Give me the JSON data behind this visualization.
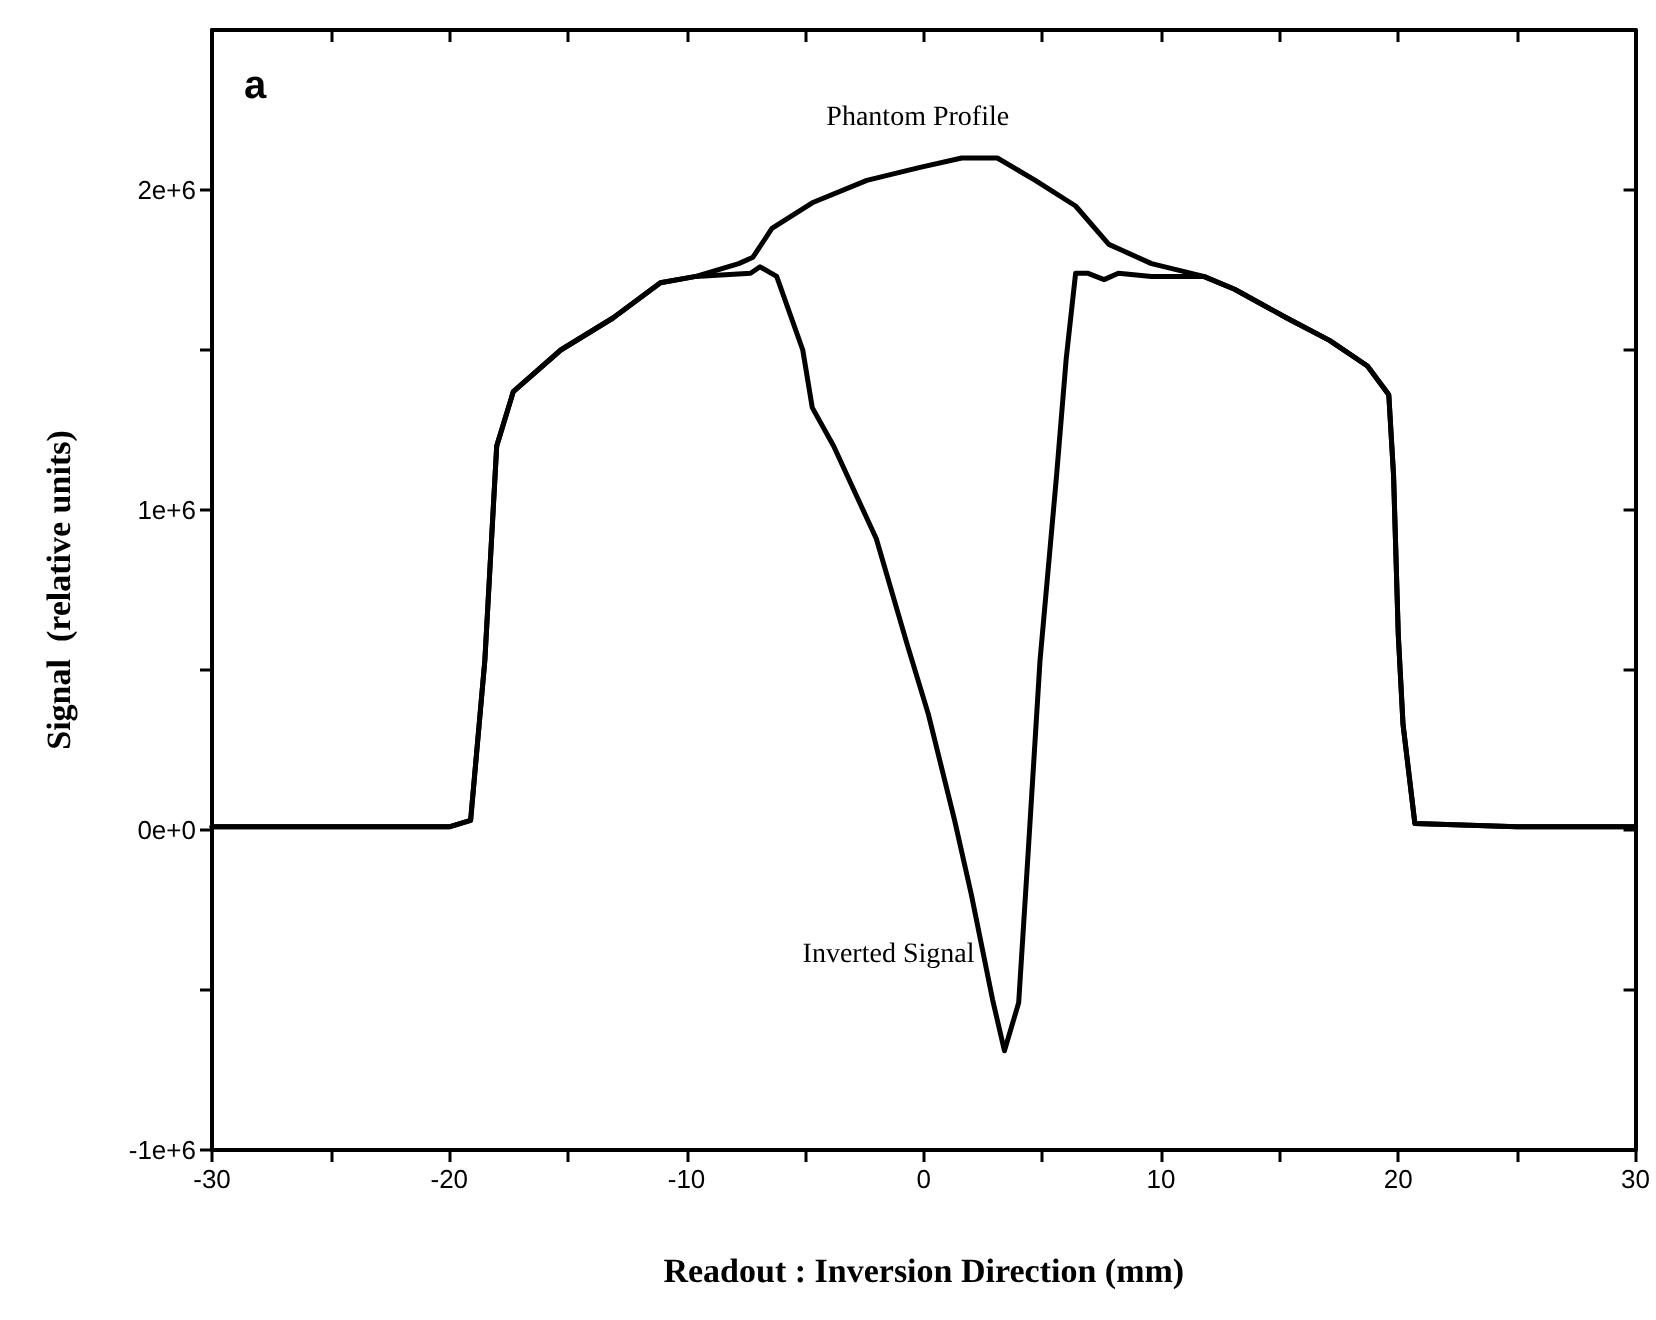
{
  "chart_data": {
    "type": "line",
    "xlabel": "Readout : Inversion Direction (mm)",
    "ylabel": "Signal  (relative units)",
    "annotations": [
      "a"
    ],
    "xlim": [
      -30,
      30
    ],
    "xticks": [
      -30,
      {
        "value": -25,
        "label": null
      },
      -20,
      {
        "value": -15,
        "label": null
      },
      -10,
      {
        "value": -5,
        "label": null
      },
      0,
      {
        "value": 5,
        "label": null
      },
      10,
      {
        "value": 15,
        "label": null
      },
      20,
      {
        "value": 25,
        "label": null
      },
      30
    ],
    "ylim": [
      -1000000,
      2500000
    ],
    "yticks": [
      {
        "value": -1000000,
        "label": "-1e+6"
      },
      {
        "value": -500000,
        "label": null
      },
      {
        "value": 0,
        "label": "0e+0"
      },
      {
        "value": 500000,
        "label": null
      },
      {
        "value": 1000000,
        "label": "1e+6"
      },
      {
        "value": 1500000,
        "label": null
      },
      {
        "value": 2000000,
        "label": "2e+6"
      }
    ],
    "grid": false,
    "marker": "none",
    "line_style": "solid",
    "series": [
      {
        "name": "Phantom Profile",
        "color": "#000000",
        "x": [
          -30,
          -25,
          -20,
          -19.1,
          -18.5,
          -18.0,
          -17.3,
          -15.3,
          -13.1,
          -11.1,
          -9.6,
          -7.8,
          -7.2,
          -6.4,
          -4.7,
          -2.4,
          -0.2,
          1.6,
          3.1,
          4.7,
          6.4,
          7.8,
          8.4,
          9.6,
          11.8,
          13.1,
          15.3,
          17.1,
          18.7,
          19.6,
          19.8,
          20.0,
          20.2,
          20.7,
          25,
          30
        ],
        "values": [
          10000,
          10000,
          10000,
          30000,
          530000,
          1200000,
          1370000,
          1500000,
          1600000,
          1710000,
          1730000,
          1770000,
          1790000,
          1880000,
          1960000,
          2030000,
          2070000,
          2100000,
          2100000,
          2030000,
          1950000,
          1830000,
          1810000,
          1770000,
          1730000,
          1690000,
          1600000,
          1530000,
          1450000,
          1360000,
          1110000,
          610000,
          330000,
          20000,
          10000,
          10000
        ]
      },
      {
        "name": "Inverted Signal",
        "color": "#000000",
        "x": [
          -30,
          -25,
          -20,
          -19.1,
          -18.5,
          -18.0,
          -17.3,
          -15.3,
          -13.1,
          -11.1,
          -9.6,
          -7.3,
          -6.9,
          -6.2,
          -5.1,
          -4.7,
          -3.8,
          -2.0,
          -0.7,
          0.2,
          1.3,
          2.0,
          2.9,
          3.4,
          4.0,
          4.4,
          4.9,
          5.6,
          6.0,
          6.4,
          6.9,
          7.6,
          8.2,
          9.6,
          11.8,
          13.1,
          15.3,
          17.1,
          18.7,
          19.6,
          19.8,
          20.0,
          20.2,
          20.7,
          25,
          30
        ],
        "values": [
          10000,
          10000,
          10000,
          30000,
          530000,
          1200000,
          1370000,
          1500000,
          1600000,
          1710000,
          1730000,
          1740000,
          1760000,
          1730000,
          1500000,
          1320000,
          1200000,
          910000,
          580000,
          360000,
          30000,
          -200000,
          -530000,
          -690000,
          -540000,
          -70000,
          530000,
          1110000,
          1470000,
          1740000,
          1740000,
          1720000,
          1740000,
          1730000,
          1730000,
          1690000,
          1600000,
          1530000,
          1450000,
          1360000,
          1110000,
          610000,
          330000,
          20000,
          10000,
          10000
        ]
      }
    ]
  }
}
